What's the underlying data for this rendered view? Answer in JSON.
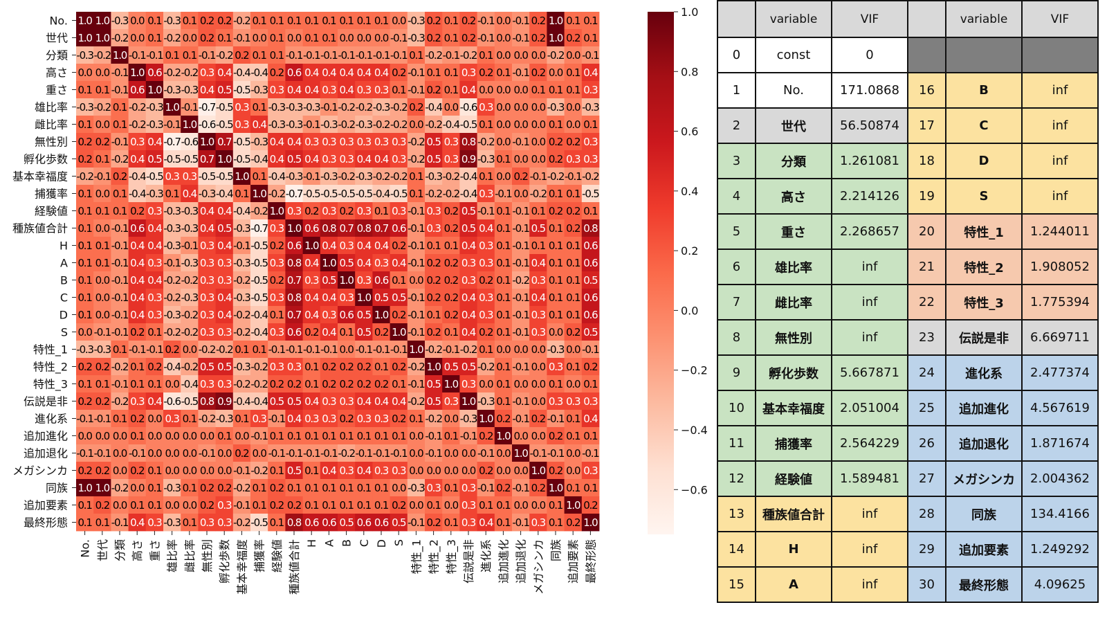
{
  "chart_data": [
    {
      "type": "heatmap",
      "title": "",
      "labels": [
        "No.",
        "世代",
        "分類",
        "高さ",
        "重さ",
        "雄比率",
        "雌比率",
        "無性別",
        "孵化歩数",
        "基本幸福度",
        "捕獲率",
        "経験値",
        "種族値合計",
        "H",
        "A",
        "B",
        "C",
        "D",
        "S",
        "特性_1",
        "特性_2",
        "特性_3",
        "伝説是非",
        "進化系",
        "追加進化",
        "追加退化",
        "メガシンカ",
        "同族",
        "追加要素",
        "最終形態"
      ],
      "colorbar": {
        "ticks": [
          "1.0",
          "0.8",
          "0.6",
          "0.4",
          "0.2",
          "0.0",
          "−0.2",
          "−0.4",
          "−0.6"
        ],
        "range": [
          -0.75,
          1.0
        ],
        "colormap": "Reds"
      },
      "matrix": [
        [
          1.0,
          1.0,
          -0.3,
          0.0,
          0.1,
          -0.3,
          0.1,
          0.2,
          0.2,
          -0.2,
          0.1,
          0.1,
          0.1,
          0.1,
          0.1,
          0.1,
          0.1,
          0.1,
          0.0,
          -0.3,
          0.2,
          0.1,
          0.2,
          -0.1,
          0.0,
          -0.1,
          0.2,
          1.0,
          0.1,
          0.1
        ],
        [
          1.0,
          1.0,
          -0.2,
          0.0,
          0.1,
          -0.2,
          0.0,
          0.2,
          0.1,
          -0.1,
          0.0,
          0.1,
          0.0,
          0.1,
          0.1,
          0.0,
          0.0,
          0.0,
          -0.1,
          -0.3,
          0.2,
          0.1,
          0.2,
          -0.1,
          0.0,
          -0.1,
          0.2,
          1.0,
          0.2,
          0.1
        ],
        [
          -0.3,
          -0.2,
          1.0,
          -0.1,
          -0.1,
          0.1,
          0.1,
          -0.1,
          -0.2,
          0.2,
          0.1,
          0.1,
          -0.1,
          -0.1,
          -0.1,
          -0.1,
          -0.1,
          -0.1,
          -0.1,
          0.1,
          -0.2,
          -0.1,
          -0.2,
          0.1,
          0.0,
          0.0,
          0.0,
          -0.2,
          0.0,
          -0.1
        ],
        [
          0.0,
          0.0,
          -0.1,
          1.0,
          0.6,
          -0.2,
          -0.2,
          0.3,
          0.4,
          -0.4,
          -0.4,
          0.2,
          0.6,
          0.4,
          0.4,
          0.4,
          0.4,
          0.4,
          0.2,
          -0.1,
          0.1,
          0.1,
          0.3,
          0.2,
          0.1,
          -0.1,
          0.2,
          0.0,
          0.1,
          0.4
        ],
        [
          0.1,
          0.1,
          -0.1,
          0.6,
          1.0,
          -0.3,
          -0.3,
          0.4,
          0.5,
          -0.5,
          -0.3,
          0.3,
          0.4,
          0.4,
          0.3,
          0.4,
          0.3,
          0.3,
          0.1,
          -0.1,
          0.2,
          0.1,
          0.4,
          0.0,
          0.0,
          -0.0,
          0.1,
          0.1,
          0.1,
          0.3
        ],
        [
          -0.3,
          -0.2,
          0.1,
          -0.2,
          -0.3,
          1.0,
          -0.1,
          -0.7,
          -0.5,
          0.3,
          0.1,
          -0.3,
          -0.3,
          -0.3,
          -0.1,
          -0.2,
          -0.2,
          -0.3,
          -0.2,
          0.2,
          -0.4,
          -0.0,
          -0.6,
          0.3,
          0.0,
          0.0,
          0.0,
          -0.3,
          0.0,
          -0.3
        ],
        [
          0.1,
          0.0,
          0.1,
          -0.2,
          -0.3,
          -0.1,
          1.0,
          -0.6,
          -0.5,
          0.3,
          0.4,
          -0.3,
          -0.3,
          -0.1,
          -0.3,
          -0.2,
          -0.3,
          -0.2,
          -0.2,
          0.0,
          -0.2,
          -0.4,
          -0.5,
          0.1,
          0.0,
          0.0,
          0.0,
          0.1,
          0.0,
          0.1
        ],
        [
          0.2,
          0.2,
          -0.1,
          0.3,
          0.4,
          -0.7,
          -0.6,
          1.0,
          0.7,
          -0.5,
          -0.3,
          0.4,
          0.4,
          0.3,
          0.3,
          0.3,
          0.3,
          0.3,
          0.3,
          -0.2,
          0.5,
          0.3,
          0.8,
          -0.2,
          0.0,
          -0.1,
          0.0,
          0.2,
          0.2,
          0.3
        ],
        [
          0.2,
          0.1,
          -0.2,
          0.4,
          0.5,
          -0.5,
          -0.5,
          0.7,
          1.0,
          -0.5,
          -0.4,
          0.4,
          0.5,
          0.4,
          0.3,
          0.3,
          0.4,
          0.4,
          0.3,
          -0.2,
          0.5,
          0.3,
          0.9,
          -0.3,
          0.1,
          -0.0,
          0.0,
          0.2,
          0.3,
          0.3
        ],
        [
          -0.2,
          -0.1,
          0.2,
          -0.4,
          -0.5,
          0.3,
          0.3,
          -0.5,
          -0.5,
          1.0,
          0.1,
          -0.4,
          -0.3,
          -0.1,
          -0.3,
          -0.2,
          -0.3,
          -0.2,
          -0.2,
          0.1,
          -0.3,
          -0.2,
          -0.4,
          0.1,
          0.0,
          0.2,
          -0.1,
          -0.2,
          -0.1,
          -0.2
        ],
        [
          0.1,
          0.0,
          0.1,
          -0.4,
          -0.3,
          0.1,
          0.4,
          -0.3,
          -0.4,
          0.1,
          1.0,
          -0.2,
          -0.7,
          -0.5,
          -0.5,
          -0.5,
          -0.5,
          -0.4,
          -0.5,
          0.1,
          -0.2,
          -0.2,
          -0.4,
          0.3,
          -0.1,
          0.0,
          -0.2,
          0.1,
          0.1,
          -0.5
        ],
        [
          0.1,
          0.1,
          0.1,
          0.2,
          0.3,
          -0.3,
          -0.3,
          0.4,
          0.4,
          -0.4,
          -0.2,
          1.0,
          0.3,
          0.2,
          0.3,
          0.2,
          0.3,
          0.1,
          0.3,
          -0.1,
          0.3,
          0.2,
          0.5,
          -0.1,
          0.1,
          -0.1,
          0.1,
          0.2,
          0.2,
          0.1
        ],
        [
          0.1,
          0.0,
          -0.1,
          0.6,
          0.4,
          -0.3,
          -0.3,
          0.4,
          0.5,
          -0.3,
          -0.7,
          0.3,
          1.0,
          0.6,
          0.8,
          0.7,
          0.8,
          0.7,
          0.6,
          -0.1,
          0.3,
          0.2,
          0.5,
          0.4,
          0.1,
          -0.1,
          0.5,
          0.1,
          0.2,
          0.8
        ],
        [
          0.1,
          0.1,
          -0.1,
          0.4,
          0.4,
          -0.3,
          -0.1,
          0.3,
          0.4,
          -0.1,
          -0.5,
          0.2,
          0.6,
          1.0,
          0.4,
          0.3,
          0.4,
          0.4,
          0.2,
          -0.1,
          0.1,
          0.1,
          0.4,
          0.3,
          0.1,
          -0.1,
          0.1,
          0.1,
          0.1,
          0.6
        ],
        [
          0.1,
          0.1,
          -0.1,
          0.4,
          0.3,
          -0.1,
          -0.3,
          0.3,
          0.3,
          -0.3,
          -0.5,
          0.3,
          0.8,
          0.4,
          1.0,
          0.5,
          0.4,
          0.3,
          0.4,
          -0.1,
          0.2,
          0.2,
          0.3,
          0.3,
          0.1,
          -0.1,
          0.4,
          0.1,
          0.1,
          0.6
        ],
        [
          0.1,
          0.0,
          -0.1,
          0.4,
          0.4,
          -0.2,
          -0.2,
          0.3,
          0.3,
          -0.2,
          -0.5,
          0.2,
          0.7,
          0.3,
          0.5,
          1.0,
          0.3,
          0.6,
          0.1,
          -0.0,
          0.2,
          0.2,
          0.3,
          0.2,
          0.1,
          -0.2,
          0.3,
          0.1,
          0.1,
          0.5
        ],
        [
          0.1,
          0.0,
          -0.1,
          0.4,
          0.3,
          -0.2,
          -0.3,
          0.3,
          0.4,
          -0.3,
          -0.5,
          0.3,
          0.8,
          0.4,
          0.4,
          0.3,
          1.0,
          0.5,
          0.5,
          -0.1,
          0.2,
          0.2,
          0.4,
          0.3,
          0.1,
          -0.1,
          0.4,
          0.1,
          0.1,
          0.6
        ],
        [
          0.1,
          0.0,
          -0.1,
          0.4,
          0.3,
          -0.3,
          -0.2,
          0.3,
          0.4,
          -0.2,
          -0.4,
          0.1,
          0.7,
          0.4,
          0.3,
          0.6,
          0.5,
          1.0,
          0.2,
          -0.1,
          0.1,
          0.2,
          0.4,
          0.3,
          0.1,
          -0.1,
          0.3,
          0.1,
          0.1,
          0.6
        ],
        [
          -0.0,
          -0.1,
          -0.1,
          0.2,
          0.1,
          -0.2,
          -0.2,
          0.3,
          0.3,
          -0.2,
          -0.4,
          0.3,
          0.6,
          0.2,
          0.4,
          0.1,
          0.5,
          0.2,
          1.0,
          -0.1,
          0.2,
          0.1,
          0.4,
          0.2,
          0.1,
          -0.1,
          0.3,
          -0.0,
          0.2,
          0.5
        ],
        [
          -0.3,
          -0.3,
          0.1,
          -0.1,
          -0.1,
          0.2,
          0.0,
          -0.2,
          -0.2,
          0.1,
          0.1,
          -0.1,
          -0.1,
          -0.1,
          -0.1,
          -0.0,
          -0.1,
          -0.1,
          -0.1,
          1.0,
          -0.2,
          -0.1,
          -0.2,
          0.1,
          0.0,
          0.0,
          0.0,
          -0.3,
          0.0,
          -0.1
        ],
        [
          0.2,
          0.2,
          -0.2,
          0.1,
          0.2,
          -0.4,
          -0.2,
          0.5,
          0.5,
          -0.3,
          -0.2,
          0.3,
          0.3,
          0.1,
          0.2,
          0.2,
          0.2,
          0.1,
          0.2,
          -0.2,
          1.0,
          0.5,
          0.5,
          -0.2,
          0.1,
          -0.1,
          0.0,
          0.3,
          0.1,
          0.2
        ],
        [
          0.1,
          0.1,
          -0.1,
          0.1,
          0.1,
          -0.0,
          -0.4,
          0.3,
          0.3,
          -0.2,
          -0.2,
          0.2,
          0.2,
          0.1,
          0.2,
          0.2,
          0.2,
          0.2,
          0.1,
          -0.1,
          0.5,
          1.0,
          0.3,
          0.0,
          0.1,
          0.0,
          0.0,
          0.1,
          0.0,
          0.1
        ],
        [
          0.2,
          0.2,
          -0.2,
          0.3,
          0.4,
          -0.6,
          -0.5,
          0.8,
          0.9,
          -0.4,
          -0.4,
          0.5,
          0.5,
          0.4,
          0.3,
          0.3,
          0.4,
          0.4,
          0.4,
          -0.2,
          0.5,
          0.3,
          1.0,
          -0.3,
          0.1,
          -0.1,
          0.0,
          0.3,
          0.3,
          0.3
        ],
        [
          -0.1,
          -0.1,
          0.1,
          0.2,
          0.0,
          0.3,
          0.1,
          -0.2,
          -0.3,
          0.1,
          0.3,
          -0.1,
          0.4,
          0.3,
          0.3,
          0.2,
          0.3,
          0.3,
          0.2,
          0.1,
          -0.2,
          0.0,
          -0.3,
          1.0,
          0.2,
          -0.1,
          0.2,
          -0.1,
          0.1,
          0.4
        ],
        [
          0.0,
          0.0,
          0.0,
          0.1,
          0.0,
          0.0,
          0.0,
          0.0,
          0.1,
          0.0,
          -0.1,
          0.1,
          0.1,
          0.1,
          0.1,
          0.1,
          0.1,
          0.1,
          0.1,
          0.0,
          -0.1,
          0.1,
          -0.1,
          0.2,
          1.0,
          0.0,
          0.0,
          0.2,
          0.1,
          0.1
        ],
        [
          -0.1,
          -0.1,
          0.0,
          -0.1,
          0.0,
          0.0,
          0.0,
          -0.1,
          0.0,
          0.2,
          0.0,
          -0.1,
          -0.1,
          -0.1,
          -0.1,
          -0.2,
          -0.1,
          -0.1,
          -0.1,
          0.0,
          -0.1,
          0.0,
          -0.0,
          -0.1,
          0.0,
          1.0,
          -0.1,
          -0.1,
          0.0,
          -0.1
        ],
        [
          0.2,
          0.2,
          0.0,
          0.2,
          0.1,
          0.0,
          0.0,
          0.0,
          0.0,
          -0.1,
          -0.2,
          0.1,
          0.5,
          0.1,
          0.4,
          0.3,
          0.4,
          0.3,
          0.3,
          0.0,
          0.0,
          0.0,
          0.0,
          0.2,
          0.0,
          -0.0,
          1.0,
          0.2,
          0.0,
          0.3
        ],
        [
          1.0,
          1.0,
          -0.2,
          0.0,
          0.1,
          -0.3,
          0.1,
          0.2,
          0.2,
          -0.2,
          0.1,
          0.2,
          0.1,
          0.1,
          0.1,
          0.1,
          0.1,
          0.1,
          -0.0,
          -0.3,
          0.3,
          0.1,
          0.3,
          -0.1,
          0.2,
          -0.1,
          0.2,
          1.0,
          0.1,
          0.1
        ],
        [
          0.1,
          0.2,
          0.0,
          0.1,
          0.1,
          0.0,
          0.0,
          0.2,
          0.3,
          -0.1,
          0.1,
          0.2,
          0.2,
          0.1,
          0.1,
          0.1,
          0.1,
          0.1,
          0.2,
          0.0,
          0.1,
          0.0,
          0.3,
          0.1,
          0.1,
          0.0,
          0.0,
          0.1,
          1.0,
          0.2
        ],
        [
          0.1,
          0.1,
          -0.1,
          0.4,
          0.3,
          -0.3,
          0.1,
          0.3,
          0.3,
          -0.2,
          -0.5,
          0.1,
          0.8,
          0.6,
          0.6,
          0.5,
          0.6,
          0.6,
          0.5,
          -0.1,
          0.2,
          0.1,
          0.3,
          0.4,
          0.1,
          -0.1,
          0.3,
          0.1,
          0.2,
          1.0
        ]
      ]
    },
    {
      "type": "table",
      "title": "",
      "header": [
        "variable",
        "VIF"
      ],
      "rows": [
        {
          "idx": "0",
          "variable": "const",
          "vif": "0",
          "group": "const"
        },
        {
          "idx": "1",
          "variable": "No.",
          "vif": "171.0868",
          "group": "white"
        },
        {
          "idx": "2",
          "variable": "世代",
          "vif": "56.50874",
          "group": "gray"
        },
        {
          "idx": "3",
          "variable": "分類",
          "vif": "1.261081",
          "group": "green"
        },
        {
          "idx": "4",
          "variable": "高さ",
          "vif": "2.214126",
          "group": "green"
        },
        {
          "idx": "5",
          "variable": "重さ",
          "vif": "2.268657",
          "group": "green"
        },
        {
          "idx": "6",
          "variable": "雄比率",
          "vif": "inf",
          "group": "green"
        },
        {
          "idx": "7",
          "variable": "雌比率",
          "vif": "inf",
          "group": "green"
        },
        {
          "idx": "8",
          "variable": "無性別",
          "vif": "inf",
          "group": "green"
        },
        {
          "idx": "9",
          "variable": "孵化歩数",
          "vif": "5.667871",
          "group": "green"
        },
        {
          "idx": "10",
          "variable": "基本幸福度",
          "vif": "2.051004",
          "group": "green"
        },
        {
          "idx": "11",
          "variable": "捕獲率",
          "vif": "2.564229",
          "group": "green"
        },
        {
          "idx": "12",
          "variable": "経験値",
          "vif": "1.589481",
          "group": "green"
        },
        {
          "idx": "13",
          "variable": "種族値合計",
          "vif": "inf",
          "group": "yellow"
        },
        {
          "idx": "14",
          "variable": "H",
          "vif": "inf",
          "group": "yellow"
        },
        {
          "idx": "15",
          "variable": "A",
          "vif": "inf",
          "group": "yellow"
        },
        {
          "idx": "16",
          "variable": "B",
          "vif": "inf",
          "group": "yellow"
        },
        {
          "idx": "17",
          "variable": "C",
          "vif": "inf",
          "group": "yellow"
        },
        {
          "idx": "18",
          "variable": "D",
          "vif": "inf",
          "group": "yellow"
        },
        {
          "idx": "19",
          "variable": "S",
          "vif": "inf",
          "group": "yellow"
        },
        {
          "idx": "20",
          "variable": "特性_1",
          "vif": "1.244011",
          "group": "salmon"
        },
        {
          "idx": "21",
          "variable": "特性_2",
          "vif": "1.908052",
          "group": "salmon"
        },
        {
          "idx": "22",
          "variable": "特性_3",
          "vif": "1.775394",
          "group": "salmon"
        },
        {
          "idx": "23",
          "variable": "伝説是非",
          "vif": "6.669711",
          "group": "gray"
        },
        {
          "idx": "24",
          "variable": "進化系",
          "vif": "2.477374",
          "group": "blue"
        },
        {
          "idx": "25",
          "variable": "追加進化",
          "vif": "4.567619",
          "group": "blue"
        },
        {
          "idx": "26",
          "variable": "追加退化",
          "vif": "1.871674",
          "group": "blue"
        },
        {
          "idx": "27",
          "variable": "メガシンカ",
          "vif": "2.004362",
          "group": "blue"
        },
        {
          "idx": "28",
          "variable": "同族",
          "vif": "134.4166",
          "group": "blue"
        },
        {
          "idx": "29",
          "variable": "追加要素",
          "vif": "1.249292",
          "group": "blue"
        },
        {
          "idx": "30",
          "variable": "最終形態",
          "vif": "4.09625",
          "group": "blue"
        }
      ],
      "group_colors": {
        "const": "#ffffff",
        "white": "#ffffff",
        "gray": "#d9d9d9",
        "green": "#c9e3c2",
        "yellow": "#fce2a0",
        "salmon": "#f6c9ae",
        "blue": "#bcd3ea",
        "blank": "#7f7f7f",
        "header": "#d9d9d9"
      }
    }
  ]
}
